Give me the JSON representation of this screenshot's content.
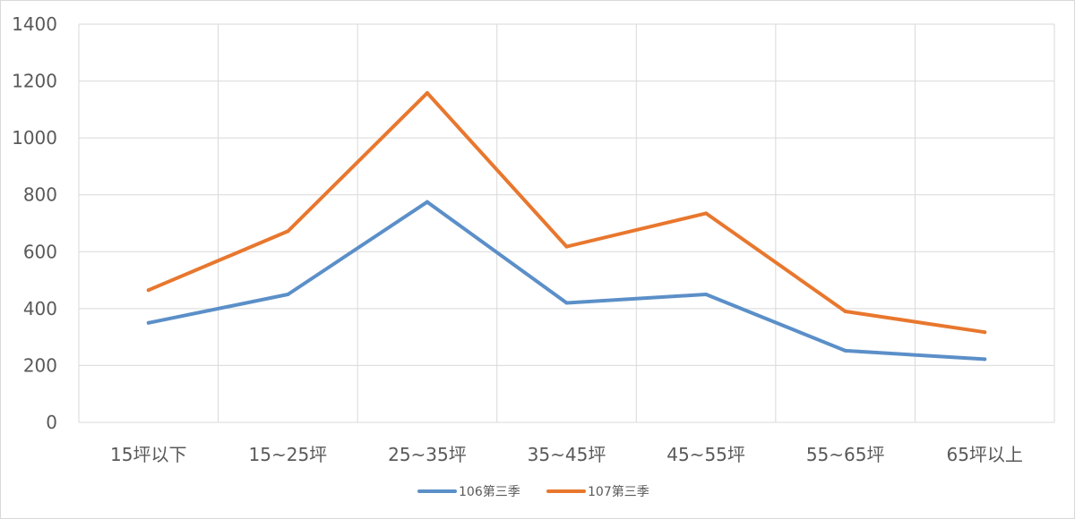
{
  "chart_data": {
    "type": "line",
    "categories": [
      "15坪以下",
      "15~25坪",
      "25~35坪",
      "35~45坪",
      "45~55坪",
      "55~65坪",
      "65坪以上"
    ],
    "series": [
      {
        "name": "106第三季",
        "color": "#5B8FC8",
        "values": [
          350,
          450,
          775,
          420,
          450,
          252,
          222
        ]
      },
      {
        "name": "107第三季",
        "color": "#E8772E",
        "values": [
          465,
          672,
          1158,
          618,
          735,
          390,
          317
        ]
      }
    ],
    "y_ticks": [
      "0",
      "200",
      "400",
      "600",
      "800",
      "1000",
      "1200",
      "1400"
    ],
    "ylim": [
      0,
      1400
    ],
    "grid": true,
    "legend_position": "bottom"
  }
}
